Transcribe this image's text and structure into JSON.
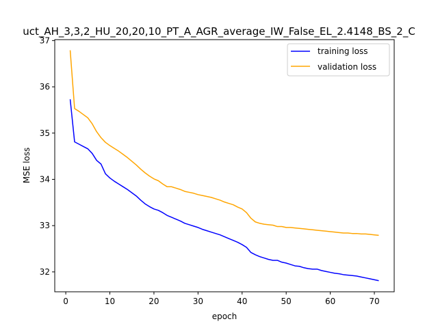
{
  "chart_data": {
    "type": "line",
    "title": "uct_AH_3,3,2_HU_20,20,10_PT_A_AGR_average_IW_False_EL_2.4148_BS_2_C",
    "xlabel": "epoch",
    "ylabel": "MSE loss",
    "xlim": [
      -2.5,
      74.5
    ],
    "ylim": [
      31.57,
      37.02
    ],
    "xticks": [
      0,
      10,
      20,
      30,
      40,
      50,
      60,
      70
    ],
    "yticks": [
      32,
      33,
      34,
      35,
      36,
      37
    ],
    "grid": false,
    "legend_position": "top-right",
    "series": [
      {
        "name": "training loss",
        "color": "#0000ff",
        "x": [
          1,
          2,
          3,
          4,
          5,
          6,
          7,
          8,
          9,
          10,
          11,
          12,
          13,
          14,
          15,
          16,
          17,
          18,
          19,
          20,
          21,
          22,
          23,
          24,
          25,
          26,
          27,
          28,
          29,
          30,
          31,
          32,
          33,
          34,
          35,
          36,
          37,
          38,
          39,
          40,
          41,
          42,
          43,
          44,
          45,
          46,
          47,
          48,
          49,
          50,
          51,
          52,
          53,
          54,
          55,
          56,
          57,
          58,
          59,
          60,
          61,
          62,
          63,
          64,
          65,
          66,
          67,
          68,
          69,
          70,
          71
        ],
        "values": [
          35.73,
          34.81,
          34.76,
          34.71,
          34.66,
          34.56,
          34.41,
          34.33,
          34.12,
          34.03,
          33.96,
          33.9,
          33.84,
          33.78,
          33.71,
          33.64,
          33.55,
          33.47,
          33.41,
          33.36,
          33.33,
          33.28,
          33.22,
          33.18,
          33.14,
          33.1,
          33.05,
          33.02,
          32.99,
          32.96,
          32.92,
          32.89,
          32.86,
          32.83,
          32.8,
          32.76,
          32.72,
          32.68,
          32.64,
          32.59,
          32.53,
          32.42,
          32.37,
          32.33,
          32.3,
          32.27,
          32.25,
          32.25,
          32.21,
          32.19,
          32.16,
          32.13,
          32.12,
          32.09,
          32.07,
          32.06,
          32.06,
          32.03,
          32.01,
          31.99,
          31.97,
          31.96,
          31.94,
          31.93,
          31.92,
          31.91,
          31.89,
          31.87,
          31.85,
          31.83,
          31.81
        ]
      },
      {
        "name": "validation loss",
        "color": "#ffa500",
        "x": [
          1,
          2,
          3,
          4,
          5,
          6,
          7,
          8,
          9,
          10,
          11,
          12,
          13,
          14,
          15,
          16,
          17,
          18,
          19,
          20,
          21,
          22,
          23,
          24,
          25,
          26,
          27,
          28,
          29,
          30,
          31,
          32,
          33,
          34,
          35,
          36,
          37,
          38,
          39,
          40,
          41,
          42,
          43,
          44,
          45,
          46,
          47,
          48,
          49,
          50,
          51,
          52,
          53,
          54,
          55,
          56,
          57,
          58,
          59,
          60,
          61,
          62,
          63,
          64,
          65,
          66,
          67,
          68,
          69,
          70,
          71
        ],
        "values": [
          36.79,
          35.53,
          35.47,
          35.4,
          35.33,
          35.2,
          35.03,
          34.9,
          34.8,
          34.73,
          34.67,
          34.61,
          34.54,
          34.47,
          34.39,
          34.31,
          34.22,
          34.14,
          34.07,
          34.01,
          33.97,
          33.9,
          33.84,
          33.84,
          33.81,
          33.78,
          33.74,
          33.72,
          33.7,
          33.67,
          33.65,
          33.63,
          33.61,
          33.58,
          33.55,
          33.51,
          33.48,
          33.45,
          33.4,
          33.36,
          33.28,
          33.16,
          33.08,
          33.05,
          33.03,
          33.02,
          33.01,
          32.98,
          32.98,
          32.96,
          32.96,
          32.95,
          32.94,
          32.93,
          32.92,
          32.91,
          32.9,
          32.89,
          32.88,
          32.87,
          32.86,
          32.85,
          32.84,
          32.84,
          32.83,
          32.83,
          32.82,
          32.82,
          32.81,
          32.8,
          32.79
        ]
      }
    ]
  }
}
